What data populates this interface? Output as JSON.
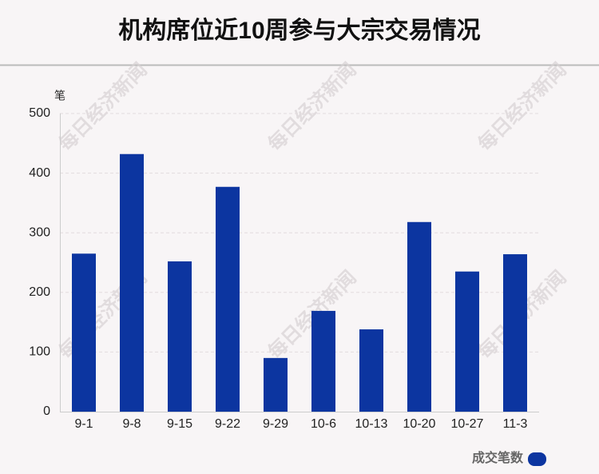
{
  "chart_data": {
    "type": "bar",
    "title": "机构席位近10周参与大宗交易情况",
    "y_label": "笔",
    "categories": [
      "9-1",
      "9-8",
      "9-15",
      "9-22",
      "9-29",
      "10-6",
      "10-13",
      "10-20",
      "10-27",
      "11-3"
    ],
    "series": [
      {
        "name": "成交笔数",
        "color": "#0c35a0",
        "values": [
          265,
          432,
          252,
          377,
          90,
          169,
          138,
          318,
          235,
          264
        ]
      }
    ],
    "ylim": [
      0,
      500
    ],
    "yticks": [
      0,
      100,
      200,
      300,
      400,
      500
    ],
    "grid": true,
    "legend": "bottom-right",
    "watermark": "每日经济新闻"
  }
}
